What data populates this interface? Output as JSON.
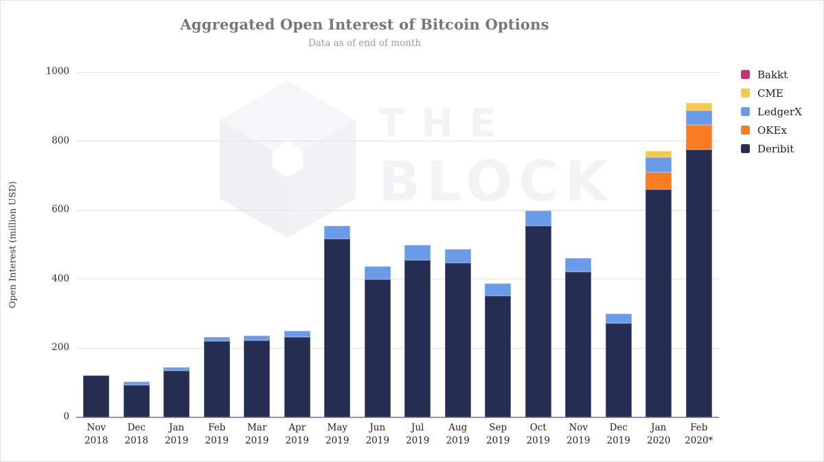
{
  "header": {
    "title": "Aggregated Open Interest of Bitcoin Options",
    "subtitle": "Data as of end of month"
  },
  "watermark": {
    "line1": "THE",
    "line2": "BLOCK"
  },
  "y_axis": {
    "title": "Open Interest (million USD)",
    "ticks": [
      1000,
      800,
      600,
      400,
      200,
      0
    ],
    "max": 1000
  },
  "x_axis": {
    "categories": [
      {
        "month": "Nov",
        "year": "2018"
      },
      {
        "month": "Dec",
        "year": "2018"
      },
      {
        "month": "Jan",
        "year": "2019"
      },
      {
        "month": "Feb",
        "year": "2019"
      },
      {
        "month": "Mar",
        "year": "2019"
      },
      {
        "month": "Apr",
        "year": "2019"
      },
      {
        "month": "May",
        "year": "2019"
      },
      {
        "month": "Jun",
        "year": "2019"
      },
      {
        "month": "Jul",
        "year": "2019"
      },
      {
        "month": "Aug",
        "year": "2019"
      },
      {
        "month": "Sep",
        "year": "2019"
      },
      {
        "month": "Oct",
        "year": "2019"
      },
      {
        "month": "Nov",
        "year": "2019"
      },
      {
        "month": "Dec",
        "year": "2019"
      },
      {
        "month": "Jan",
        "year": "2020"
      },
      {
        "month": "Feb",
        "year": "2020*"
      }
    ]
  },
  "legend": {
    "items": [
      {
        "label": "Bakkt",
        "color": "#C23473"
      },
      {
        "label": "CME",
        "color": "#F6C84C"
      },
      {
        "label": "LedgerX",
        "color": "#6A9BE8"
      },
      {
        "label": "OKEx",
        "color": "#F97B22"
      },
      {
        "label": "Deribit",
        "color": "#252E52"
      }
    ]
  },
  "chart_data": {
    "type": "bar",
    "stacked": true,
    "title": "Aggregated Open Interest of Bitcoin Options",
    "subtitle": "Data as of end of month",
    "ylabel": "Open Interest (million USD)",
    "ylim": [
      0,
      1000
    ],
    "grid": true,
    "legend_position": "right",
    "categories": [
      "Nov 2018",
      "Dec 2018",
      "Jan 2019",
      "Feb 2019",
      "Mar 2019",
      "Apr 2019",
      "May 2019",
      "Jun 2019",
      "Jul 2019",
      "Aug 2019",
      "Sep 2019",
      "Oct 2019",
      "Nov 2019",
      "Dec 2019",
      "Jan 2020",
      "Feb 2020*"
    ],
    "series": [
      {
        "name": "Bakkt",
        "color": "#C23473",
        "values": [
          0,
          0,
          0,
          0,
          0,
          0,
          0,
          0,
          0,
          0,
          0,
          0,
          0,
          0,
          0,
          0
        ]
      },
      {
        "name": "CME",
        "color": "#F6C84C",
        "values": [
          0,
          0,
          0,
          0,
          0,
          0,
          0,
          0,
          0,
          0,
          0,
          0,
          0,
          0,
          18,
          23
        ]
      },
      {
        "name": "LedgerX",
        "color": "#6A9BE8",
        "values": [
          0,
          11,
          11,
          13,
          14,
          19,
          39,
          37,
          44,
          40,
          36,
          44,
          40,
          27,
          44,
          41
        ]
      },
      {
        "name": "OKEx",
        "color": "#F97B22",
        "values": [
          0,
          0,
          0,
          0,
          0,
          0,
          0,
          0,
          0,
          0,
          0,
          0,
          0,
          0,
          50,
          72
        ]
      },
      {
        "name": "Deribit",
        "color": "#252E52",
        "values": [
          122,
          93,
          135,
          220,
          223,
          232,
          516,
          400,
          455,
          448,
          351,
          554,
          422,
          273,
          660,
          775
        ]
      }
    ]
  }
}
